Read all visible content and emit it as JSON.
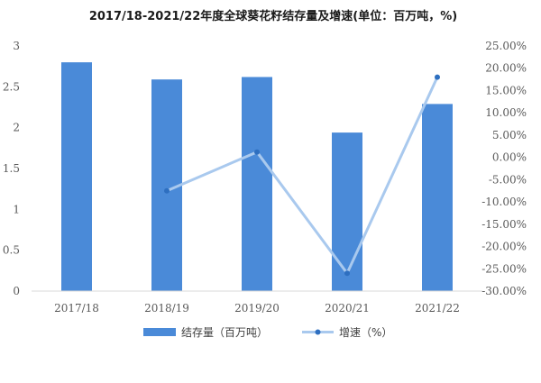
{
  "chart_data": {
    "type": "bar",
    "title": "2017/18-2021/22年度全球葵花籽结存量及增速(单位：百万吨，%)",
    "categories": [
      "2017/18",
      "2018/19",
      "2019/20",
      "2020/21",
      "2021/22"
    ],
    "series": [
      {
        "name": "结存量（百万吨）",
        "type": "bar",
        "axis": "left",
        "color": "#4a8ad8",
        "values": [
          2.8,
          2.59,
          2.62,
          1.94,
          2.29
        ]
      },
      {
        "name": "增速（%）",
        "type": "line",
        "axis": "right",
        "color": "#a9c9ee",
        "marker_color": "#2e6fc0",
        "values": [
          null,
          -7.5,
          1.2,
          -26.0,
          18.0
        ]
      }
    ],
    "left_axis": {
      "min": 0,
      "max": 3,
      "ticks": [
        "0",
        "0.5",
        "1",
        "1.5",
        "2",
        "2.5",
        "3"
      ]
    },
    "right_axis": {
      "min": -30,
      "max": 25,
      "ticks": [
        "-30.00%",
        "-25.00%",
        "-20.00%",
        "-15.00%",
        "-10.00%",
        "-5.00%",
        "0.00%",
        "5.00%",
        "10.00%",
        "15.00%",
        "20.00%",
        "25.00%"
      ]
    },
    "legend": {
      "position": "bottom"
    },
    "grid": false
  }
}
